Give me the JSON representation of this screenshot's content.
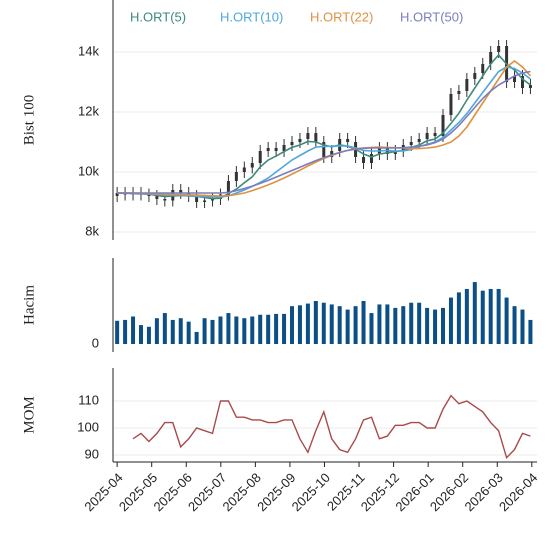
{
  "chart_data": [
    {
      "type": "candlestick",
      "ylabel": "Bist 100",
      "x": [
        0,
        0.23,
        0.46,
        0.69,
        0.92,
        1.15,
        1.38,
        1.61,
        1.84,
        2.07,
        2.3,
        2.53,
        2.76,
        2.99,
        3.22,
        3.45,
        3.68,
        3.91,
        4.14,
        4.37,
        4.6,
        4.83,
        5.06,
        5.29,
        5.52,
        5.75,
        5.98,
        6.21,
        6.44,
        6.67,
        6.9,
        7.13,
        7.36,
        7.59,
        7.82,
        8.05,
        8.28,
        8.51,
        8.74,
        8.97,
        9.2,
        9.43,
        9.66,
        9.89,
        10.12,
        10.35,
        10.58,
        10.81,
        11.04,
        11.27,
        11.5,
        11.73,
        11.96
      ],
      "xlim": [
        -0.12,
        12.15
      ],
      "open": [
        9200,
        9300,
        9250,
        9300,
        9250,
        9200,
        9100,
        9050,
        9400,
        9300,
        9200,
        9000,
        9050,
        9100,
        9250,
        9700,
        10000,
        10150,
        10300,
        10700,
        10800,
        10700,
        10900,
        11000,
        11100,
        11300,
        11000,
        10500,
        10700,
        11100,
        11000,
        10500,
        10300,
        10600,
        10800,
        10600,
        10700,
        10900,
        11000,
        11100,
        11300,
        11200,
        11900,
        12600,
        12700,
        13100,
        13300,
        13600,
        14000,
        14200,
        13000,
        13200,
        12800
      ],
      "high": [
        9500,
        9500,
        9500,
        9500,
        9450,
        9400,
        9300,
        9600,
        9600,
        9500,
        9400,
        9250,
        9300,
        9450,
        9900,
        10200,
        10350,
        10500,
        10900,
        11000,
        11000,
        11100,
        11200,
        11300,
        11500,
        11500,
        11200,
        10900,
        11300,
        11300,
        11200,
        10700,
        10800,
        11000,
        11000,
        10900,
        11100,
        11200,
        11300,
        11500,
        11500,
        12100,
        12800,
        12900,
        13300,
        13500,
        13800,
        14200,
        14400,
        14400,
        13400,
        13400,
        13100
      ],
      "low": [
        9000,
        9050,
        9050,
        9050,
        9000,
        8900,
        8850,
        8850,
        9100,
        9000,
        8800,
        8800,
        8850,
        8900,
        9050,
        9500,
        9800,
        9950,
        10100,
        10500,
        10500,
        10500,
        10700,
        10800,
        10900,
        10800,
        10300,
        10300,
        10500,
        10800,
        10300,
        10100,
        10100,
        10400,
        10400,
        10400,
        10500,
        10700,
        10800,
        10900,
        11000,
        11000,
        11700,
        12400,
        12500,
        12900,
        13100,
        13400,
        13800,
        12800,
        12800,
        12600,
        12600
      ],
      "close": [
        9300,
        9250,
        9300,
        9250,
        9200,
        9100,
        9050,
        9400,
        9300,
        9200,
        9000,
        9050,
        9100,
        9250,
        9700,
        10000,
        10150,
        10300,
        10700,
        10800,
        10700,
        10900,
        11000,
        11100,
        11300,
        11000,
        10500,
        10700,
        11100,
        11000,
        10500,
        10300,
        10600,
        10800,
        10600,
        10700,
        10900,
        11000,
        11100,
        11300,
        11200,
        11900,
        12600,
        12700,
        13100,
        13300,
        13600,
        14000,
        14200,
        13000,
        13200,
        12800,
        12900
      ],
      "candle_color": "#333333",
      "series": [
        {
          "name": "H.ORT(5)",
          "color": "#3c8a7c",
          "values": [
            9300,
            9290,
            9280,
            9270,
            9260,
            9220,
            9180,
            9200,
            9220,
            9200,
            9190,
            9150,
            9110,
            9130,
            9280,
            9430,
            9640,
            9840,
            10170,
            10400,
            10530,
            10680,
            10820,
            10900,
            11020,
            11000,
            10900,
            10840,
            10900,
            10860,
            10760,
            10600,
            10500,
            10600,
            10640,
            10680,
            10720,
            10820,
            10900,
            11040,
            11100,
            11300,
            11620,
            11960,
            12400,
            12800,
            13200,
            13600,
            13900,
            13600,
            13400,
            13100,
            12900
          ]
        },
        {
          "name": "H.ORT(10)",
          "color": "#4fa7dd",
          "values": [
            9300,
            9300,
            9290,
            9280,
            9270,
            9250,
            9230,
            9230,
            9230,
            9200,
            9190,
            9180,
            9170,
            9170,
            9200,
            9300,
            9400,
            9520,
            9650,
            9800,
            10000,
            10200,
            10400,
            10550,
            10700,
            10830,
            10850,
            10860,
            10870,
            10870,
            10800,
            10720,
            10700,
            10700,
            10720,
            10700,
            10700,
            10750,
            10850,
            10920,
            11000,
            11150,
            11400,
            11650,
            11950,
            12300,
            12650,
            13000,
            13350,
            13500,
            13450,
            13300,
            13100
          ]
        },
        {
          "name": "H.ORT(22)",
          "color": "#e0913f",
          "values": [
            9300,
            9300,
            9300,
            9290,
            9280,
            9270,
            9260,
            9250,
            9250,
            9240,
            9230,
            9220,
            9210,
            9200,
            9210,
            9250,
            9300,
            9380,
            9470,
            9570,
            9680,
            9800,
            9930,
            10060,
            10200,
            10330,
            10450,
            10550,
            10650,
            10720,
            10780,
            10800,
            10820,
            10830,
            10820,
            10810,
            10800,
            10780,
            10780,
            10800,
            10830,
            10900,
            11000,
            11200,
            11500,
            11900,
            12300,
            12700,
            13100,
            13500,
            13700,
            13500,
            13200
          ]
        },
        {
          "name": "H.ORT(50)",
          "color": "#7b7dbf",
          "values": [
            9300,
            9300,
            9300,
            9300,
            9300,
            9300,
            9300,
            9300,
            9300,
            9300,
            9300,
            9300,
            9300,
            9300,
            9320,
            9380,
            9450,
            9530,
            9620,
            9720,
            9830,
            9940,
            10050,
            10160,
            10270,
            10380,
            10480,
            10570,
            10650,
            10720,
            10760,
            10790,
            10800,
            10800,
            10800,
            10800,
            10810,
            10830,
            10860,
            10900,
            10980,
            11100,
            11300,
            11550,
            11850,
            12150,
            12450,
            12700,
            12900,
            13050,
            13200,
            13300,
            13350
          ]
        }
      ],
      "ylim": [
        7733,
        15733
      ],
      "yticks": [
        {
          "value": 8000,
          "label": "8k"
        },
        {
          "value": 10000,
          "label": "10k"
        },
        {
          "value": 12000,
          "label": "12k"
        },
        {
          "value": 14000,
          "label": "14k"
        }
      ],
      "grid": true
    },
    {
      "type": "bar",
      "ylabel": "Hacim",
      "color": "#0b4f86",
      "values": [
        27,
        28,
        32,
        22,
        20,
        30,
        36,
        28,
        30,
        26,
        14,
        30,
        28,
        32,
        36,
        32,
        30,
        32,
        34,
        34,
        35,
        35,
        44,
        45,
        47,
        50,
        48,
        46,
        44,
        40,
        44,
        50,
        36,
        46,
        46,
        42,
        44,
        48,
        48,
        42,
        40,
        42,
        54,
        60,
        64,
        72,
        62,
        64,
        64,
        54,
        44,
        40,
        28
      ],
      "ylim": [
        -9.3,
        100
      ],
      "yticks": [
        0
      ],
      "grid": false
    },
    {
      "type": "line",
      "ylabel": "MOM",
      "color": "#a84a4c",
      "values": [
        null,
        null,
        96,
        98,
        95,
        98,
        102,
        102,
        93,
        96,
        100,
        99,
        98,
        110,
        110,
        104,
        104,
        103,
        103,
        102,
        102,
        103,
        103,
        96,
        91,
        99,
        106,
        96,
        92,
        91,
        96,
        103,
        104,
        96,
        97,
        101,
        101,
        102,
        102,
        100,
        100,
        107,
        112,
        109,
        110,
        108,
        106,
        102,
        99,
        89,
        92,
        98,
        97
      ],
      "ylim": [
        87.4,
        122.2
      ],
      "yticks": [
        90,
        100,
        110
      ],
      "grid": true,
      "xticks": [
        {
          "value": 0,
          "label": "2025-04"
        },
        {
          "value": 1,
          "label": "2025-05"
        },
        {
          "value": 2,
          "label": "2025-06"
        },
        {
          "value": 3,
          "label": "2025-07"
        },
        {
          "value": 4,
          "label": "2025-08"
        },
        {
          "value": 5,
          "label": "2025-09"
        },
        {
          "value": 6,
          "label": "2025-10"
        },
        {
          "value": 7,
          "label": "2025-11"
        },
        {
          "value": 8,
          "label": "2025-12"
        },
        {
          "value": 9,
          "label": "2026-01"
        },
        {
          "value": 10,
          "label": "2026-02"
        },
        {
          "value": 11,
          "label": "2026-03"
        },
        {
          "value": 12,
          "label": "2026-04"
        }
      ]
    }
  ]
}
